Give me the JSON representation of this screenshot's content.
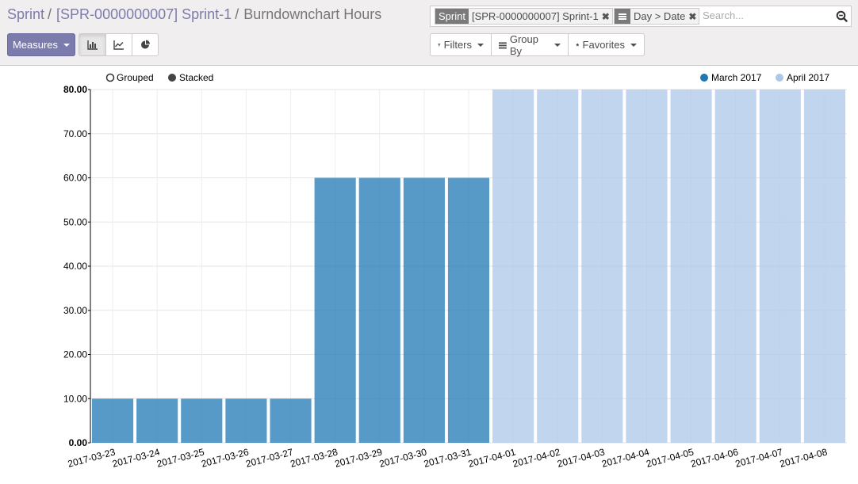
{
  "breadcrumb": {
    "items": [
      "Sprint",
      "[SPR-0000000007] Sprint-1"
    ],
    "separator": "/",
    "current": "Burndownchart Hours"
  },
  "search": {
    "facets": [
      {
        "label": "Sprint",
        "value": "[SPR-0000000007] Sprint-1"
      },
      {
        "label_icon": "list-icon",
        "value": "Day > Date"
      }
    ],
    "remove_icon": "✖",
    "placeholder": "Search..."
  },
  "toolbar": {
    "measures_label": "Measures",
    "modes": [
      {
        "name": "bar-chart-icon",
        "active": true
      },
      {
        "name": "line-chart-icon",
        "active": false
      },
      {
        "name": "pie-chart-icon",
        "active": false
      }
    ],
    "filters_label": "Filters",
    "groupby_label": "Group By",
    "favorites_label": "Favorites"
  },
  "chart_controls": {
    "grouped_label": "Grouped",
    "stacked_label": "Stacked"
  },
  "colors": {
    "primary": "#7c7bad",
    "march": "#1f77b4",
    "april": "#aec7e8"
  },
  "chart_data": {
    "type": "bar",
    "categories": [
      "2017-03-23",
      "2017-03-24",
      "2017-03-25",
      "2017-03-26",
      "2017-03-27",
      "2017-03-28",
      "2017-03-29",
      "2017-03-30",
      "2017-03-31",
      "2017-04-01",
      "2017-04-02",
      "2017-04-03",
      "2017-04-04",
      "2017-04-05",
      "2017-04-06",
      "2017-04-07",
      "2017-04-08"
    ],
    "series": [
      {
        "name": "March 2017",
        "color": "#1f77b4",
        "values": [
          10,
          10,
          10,
          10,
          10,
          60,
          60,
          60,
          60,
          null,
          null,
          null,
          null,
          null,
          null,
          null,
          null
        ]
      },
      {
        "name": "April 2017",
        "color": "#aec7e8",
        "values": [
          null,
          null,
          null,
          null,
          null,
          null,
          null,
          null,
          null,
          80,
          80,
          80,
          80,
          80,
          80,
          80,
          80
        ]
      }
    ],
    "yticks": [
      "0.00",
      "10.00",
      "20.00",
      "30.00",
      "40.00",
      "50.00",
      "60.00",
      "70.00",
      "80.00"
    ],
    "ylim": [
      0,
      80
    ],
    "grid": true,
    "legend_position": "top-right"
  }
}
